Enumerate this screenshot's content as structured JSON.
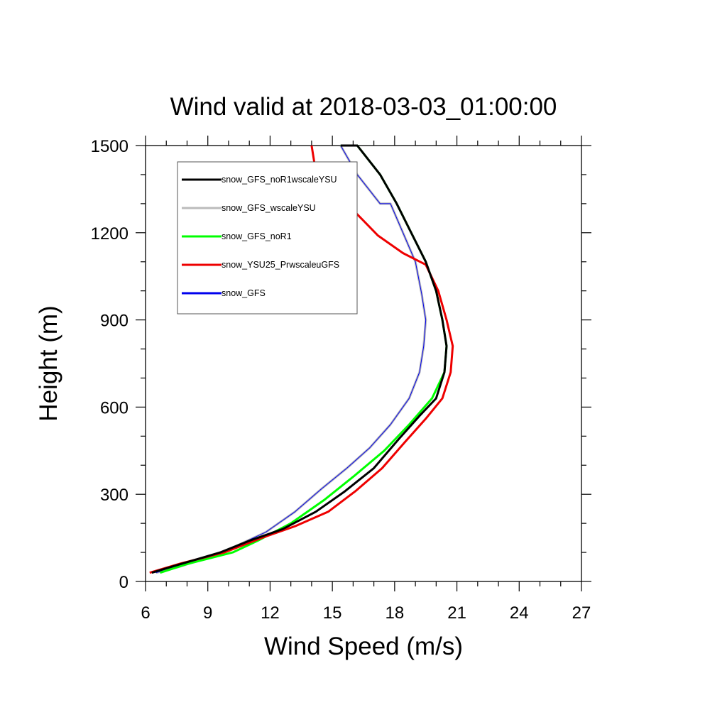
{
  "chart_data": {
    "type": "line",
    "title": "Wind valid at 2018-03-03_01:00:00",
    "xlabel": "Wind Speed (m/s)",
    "ylabel": "Height (m)",
    "xlim": [
      6,
      27
    ],
    "ylim": [
      0,
      1500
    ],
    "xticks": [
      "6",
      "9",
      "12",
      "15",
      "18",
      "21",
      "24",
      "27"
    ],
    "yticks": [
      "0",
      "300",
      "600",
      "900",
      "1200",
      "1500"
    ],
    "legend_position": "top-left",
    "grid": false,
    "series": [
      {
        "name": "snow_GFS_noR1wscaleYSU",
        "color": "#000000",
        "x": [
          6.3,
          7.7,
          9.6,
          11.0,
          12.6,
          14.2,
          15.6,
          17.0,
          18.2,
          19.2,
          20.0,
          20.4,
          20.5,
          20.3,
          20.0,
          19.5,
          18.8,
          18.1,
          17.3,
          16.2,
          15.4
        ],
        "y": [
          30,
          60,
          100,
          140,
          180,
          240,
          310,
          390,
          490,
          570,
          630,
          720,
          810,
          900,
          1000,
          1100,
          1200,
          1300,
          1400,
          1500,
          1500
        ]
      },
      {
        "name": "snow_GFS_wscaleYSU",
        "color": "#bbbbbb",
        "x": [
          6.5,
          7.6,
          8.9,
          10.3,
          11.8,
          13.2,
          14.5,
          15.7,
          16.8,
          17.8,
          18.7,
          19.2,
          19.4,
          19.5,
          19.3,
          19.0,
          18.4,
          17.8,
          17.3,
          16.2,
          15.4
        ],
        "y": [
          30,
          50,
          80,
          120,
          170,
          240,
          320,
          390,
          460,
          540,
          630,
          720,
          810,
          900,
          990,
          1100,
          1200,
          1300,
          1300,
          1400,
          1500
        ]
      },
      {
        "name": "snow_GFS_noR1",
        "color": "#00ff00",
        "x": [
          6.7,
          8.0,
          10.2,
          11.4,
          13.0,
          14.6,
          16.0,
          17.5,
          18.7,
          19.8,
          20.4,
          20.5,
          20.3,
          20.0,
          19.5,
          18.8,
          18.1,
          17.3,
          16.2,
          15.4
        ],
        "y": [
          30,
          60,
          100,
          140,
          200,
          280,
          360,
          450,
          540,
          630,
          720,
          810,
          900,
          1000,
          1100,
          1200,
          1300,
          1400,
          1500,
          1500
        ]
      },
      {
        "name": "snow_YSU25_PrwscaleuGFS",
        "color": "#ee0000",
        "x": [
          6.2,
          7.6,
          9.8,
          11.6,
          13.2,
          14.8,
          16.1,
          17.4,
          18.5,
          19.5,
          20.3,
          20.7,
          20.8,
          20.5,
          20.1,
          19.5,
          18.4,
          17.2,
          15.7,
          14.6,
          14.2,
          14.0
        ],
        "y": [
          30,
          60,
          100,
          150,
          190,
          240,
          310,
          390,
          480,
          560,
          630,
          720,
          810,
          900,
          1000,
          1090,
          1130,
          1190,
          1300,
          1380,
          1410,
          1500
        ]
      },
      {
        "name": "snow_GFS",
        "color": "#0000ee",
        "x": [
          6.5,
          7.6,
          8.9,
          10.3,
          11.8,
          13.2,
          14.5,
          15.7,
          16.8,
          17.8,
          18.7,
          19.2,
          19.4,
          19.5,
          19.3,
          19.0,
          18.4,
          17.8,
          17.3,
          16.2,
          15.4
        ],
        "y": [
          30,
          50,
          80,
          120,
          170,
          240,
          320,
          390,
          460,
          540,
          630,
          720,
          810,
          900,
          990,
          1100,
          1200,
          1300,
          1300,
          1400,
          1500
        ]
      }
    ]
  }
}
